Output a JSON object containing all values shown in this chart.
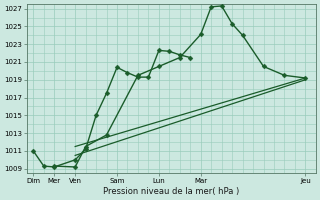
{
  "background_color": "#cce8e0",
  "grid_color": "#99ccbb",
  "line_color": "#1a5c2a",
  "xlabel_text": "Pression niveau de la mer( hPa )",
  "ylim": [
    1008.5,
    1027.5
  ],
  "yticks": [
    1009,
    1011,
    1013,
    1015,
    1017,
    1019,
    1021,
    1023,
    1025,
    1027
  ],
  "num_cols": 14,
  "xtick_positions": [
    0,
    1,
    2,
    4,
    6,
    8,
    13
  ],
  "xtick_labels": [
    "Dim",
    "Mer",
    "Ven",
    "Sam",
    "Lun",
    "Mar",
    "Jeu"
  ],
  "series": [
    {
      "x": [
        0,
        0.5,
        1,
        2,
        2.5,
        3,
        3.5,
        4,
        4.5,
        5,
        5.5,
        6,
        6.5,
        7,
        7.5
      ],
      "y": [
        1011.0,
        1009.3,
        1009.2,
        1010.0,
        1011.2,
        1015.0,
        1017.5,
        1020.4,
        1019.8,
        1019.3,
        1019.3,
        1022.3,
        1022.2,
        1021.8,
        1021.5
      ],
      "marker": "D",
      "markersize": 2.5,
      "linewidth": 1.0,
      "has_markers": true
    },
    {
      "x": [
        1,
        2,
        2.5,
        3.5,
        5,
        6,
        7,
        8,
        8.5,
        9,
        9.5,
        10,
        11,
        12,
        13
      ],
      "y": [
        1009.3,
        1009.2,
        1011.5,
        1012.8,
        1019.5,
        1020.5,
        1021.5,
        1024.1,
        1027.2,
        1027.3,
        1025.3,
        1024.0,
        1020.5,
        1019.5,
        1019.2
      ],
      "marker": "D",
      "markersize": 2.5,
      "linewidth": 1.0,
      "has_markers": true
    },
    {
      "x": [
        2,
        13
      ],
      "y": [
        1011.5,
        1019.2
      ],
      "marker": null,
      "markersize": 0,
      "linewidth": 0.9,
      "has_markers": false
    },
    {
      "x": [
        2,
        13
      ],
      "y": [
        1010.5,
        1019.0
      ],
      "marker": null,
      "markersize": 0,
      "linewidth": 0.9,
      "has_markers": false
    }
  ]
}
